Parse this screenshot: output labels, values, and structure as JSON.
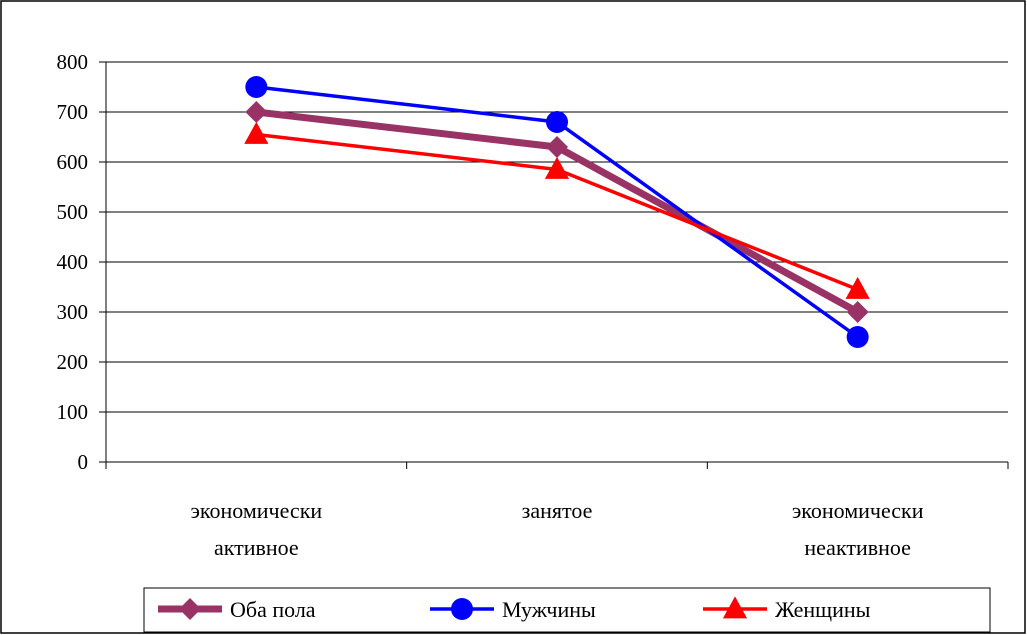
{
  "chart_data": {
    "type": "line",
    "categories": [
      [
        "экономически",
        "активное"
      ],
      [
        "занятое"
      ],
      [
        "экономически",
        "неактивное"
      ]
    ],
    "ylim": [
      0,
      800
    ],
    "yticks": [
      0,
      100,
      200,
      300,
      400,
      500,
      600,
      700,
      800
    ],
    "grid": true,
    "legend_position": "bottom",
    "series": [
      {
        "name": "Оба пола",
        "values": [
          700,
          630,
          300
        ],
        "color": "#993366",
        "marker": "diamond"
      },
      {
        "name": "Мужчины",
        "values": [
          750,
          680,
          250
        ],
        "color": "#0000ff",
        "marker": "circle"
      },
      {
        "name": "Женщины",
        "values": [
          655,
          585,
          345
        ],
        "color": "#ff0000",
        "marker": "triangle"
      }
    ]
  }
}
